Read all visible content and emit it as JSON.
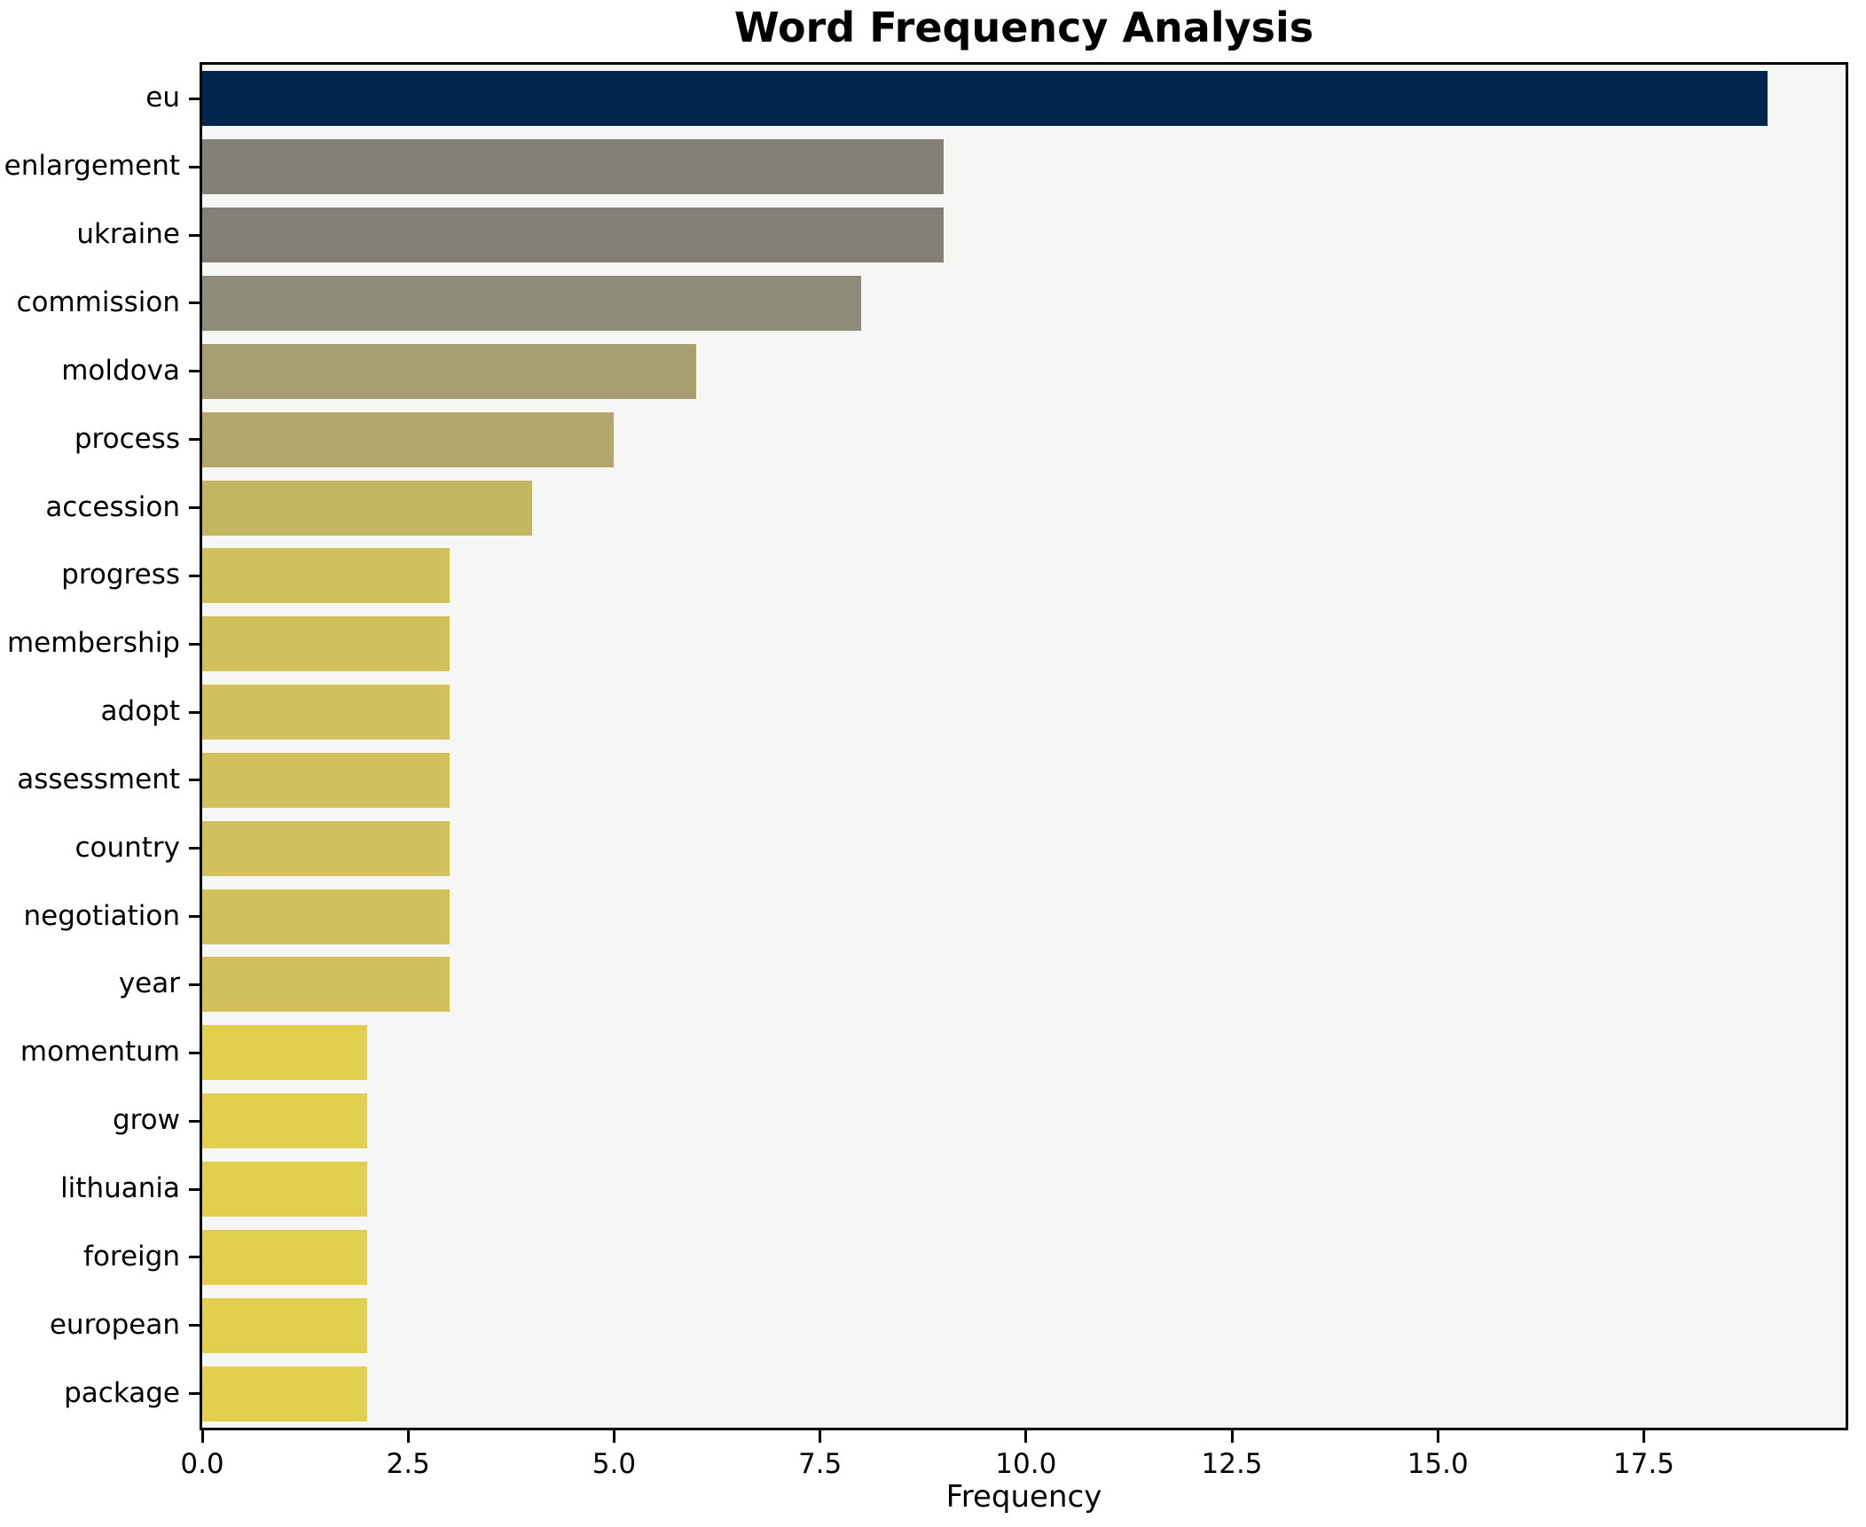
{
  "title": "Word Frequency Analysis",
  "xlabel": "Frequency",
  "colors": {
    "figure_bg": "#ffffff",
    "plot_bg": "#f6f6f4",
    "spine": "#000000",
    "text": "#000000",
    "top_bar": "#00254f",
    "mid_gray": "#838077",
    "yellow_low": "#e3cf4e"
  },
  "chart_data": {
    "type": "bar",
    "orientation": "horizontal",
    "title": "Word Frequency Analysis",
    "xlabel": "Frequency",
    "ylabel": "",
    "grid": false,
    "legend": false,
    "xlim": [
      0,
      19.95
    ],
    "xticks": [
      "0.0",
      "2.5",
      "5.0",
      "7.5",
      "10.0",
      "12.5",
      "15.0",
      "17.5"
    ],
    "xtick_values": [
      0,
      2.5,
      5,
      7.5,
      10,
      12.5,
      15,
      17.5
    ],
    "categories": [
      "eu",
      "enlargement",
      "ukraine",
      "commission",
      "moldova",
      "process",
      "accession",
      "progress",
      "membership",
      "adopt",
      "assessment",
      "country",
      "negotiation",
      "year",
      "momentum",
      "grow",
      "lithuania",
      "foreign",
      "european",
      "package"
    ],
    "values": [
      19,
      9,
      9,
      8,
      6,
      5,
      4,
      3,
      3,
      3,
      3,
      3,
      3,
      3,
      2,
      2,
      2,
      2,
      2,
      2
    ],
    "bar_colors": [
      "#00254f",
      "#838077",
      "#838077",
      "#8f8b79",
      "#a79e72",
      "#b2a86d",
      "#c2b661",
      "#d2c05c",
      "#d2c05c",
      "#d2c05c",
      "#d2c05c",
      "#d2c05c",
      "#d2c05c",
      "#d2c05c",
      "#e3cf4e",
      "#e3cf4e",
      "#e3cf4e",
      "#e3cf4e",
      "#e3cf4e",
      "#e3cf4e"
    ]
  }
}
